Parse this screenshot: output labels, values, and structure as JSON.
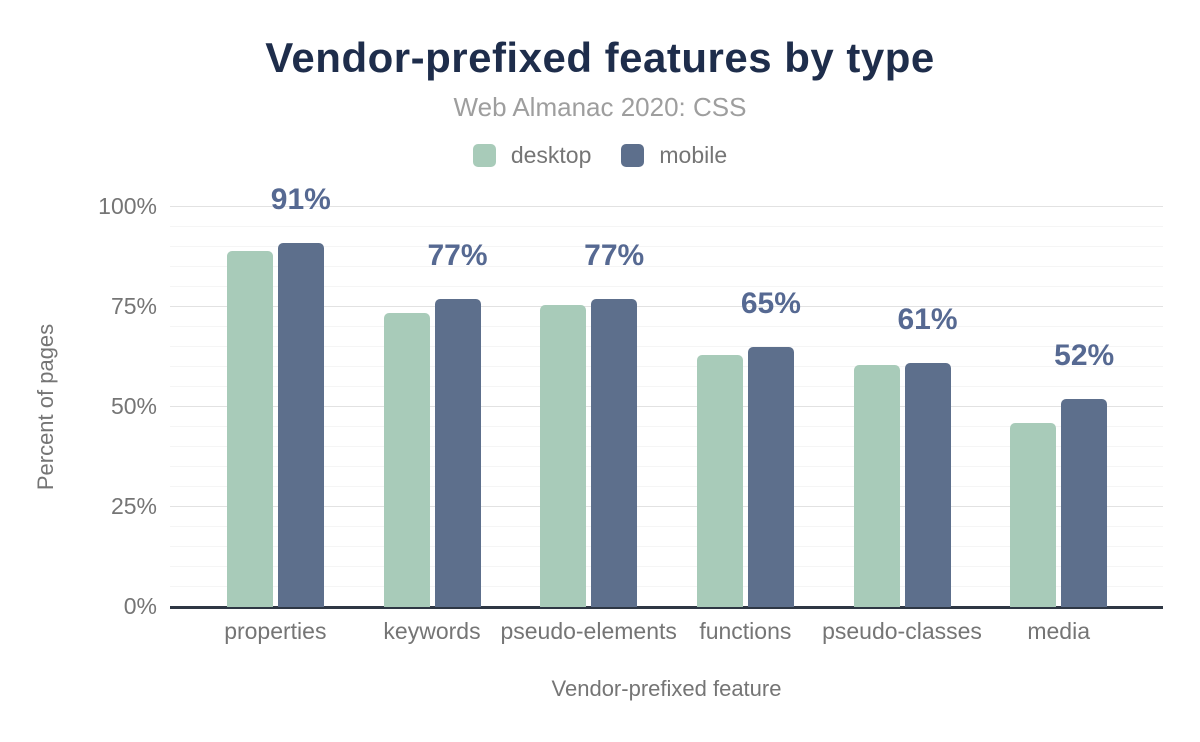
{
  "chart_data": {
    "type": "bar",
    "title": "Vendor-prefixed features by type",
    "subtitle": "Web Almanac 2020: CSS",
    "xlabel": "Vendor-prefixed feature",
    "ylabel": "Percent of pages",
    "categories": [
      "properties",
      "keywords",
      "pseudo-elements",
      "functions",
      "pseudo-classes",
      "media"
    ],
    "series": [
      {
        "name": "desktop",
        "color": "#a8cbb9",
        "values": [
          89,
          73.5,
          75.5,
          63,
          60.5,
          46
        ]
      },
      {
        "name": "mobile",
        "color": "#5d6f8c",
        "values": [
          91,
          77,
          77,
          65,
          61,
          52
        ]
      }
    ],
    "data_labels": {
      "on_series": "mobile",
      "texts": [
        "91%",
        "77%",
        "77%",
        "65%",
        "61%",
        "52%"
      ]
    },
    "y_ticks": [
      {
        "value": 0,
        "label": "0%"
      },
      {
        "value": 25,
        "label": "25%"
      },
      {
        "value": 50,
        "label": "50%"
      },
      {
        "value": 75,
        "label": "75%"
      },
      {
        "value": 100,
        "label": "100%"
      }
    ],
    "ylim": [
      0,
      100
    ],
    "grid": {
      "major_step": 25,
      "minor_step": 5,
      "grid_on": true
    },
    "legend_position": "top",
    "colors": {
      "title": "#1e2d4b",
      "subtitle": "#9e9e9e",
      "axis_text": "#757575",
      "data_label": "#566992",
      "axis_line": "#2e3744",
      "grid_major": "#e2e2e2",
      "grid_minor": "#f5f5f5",
      "background": "#ffffff"
    }
  }
}
